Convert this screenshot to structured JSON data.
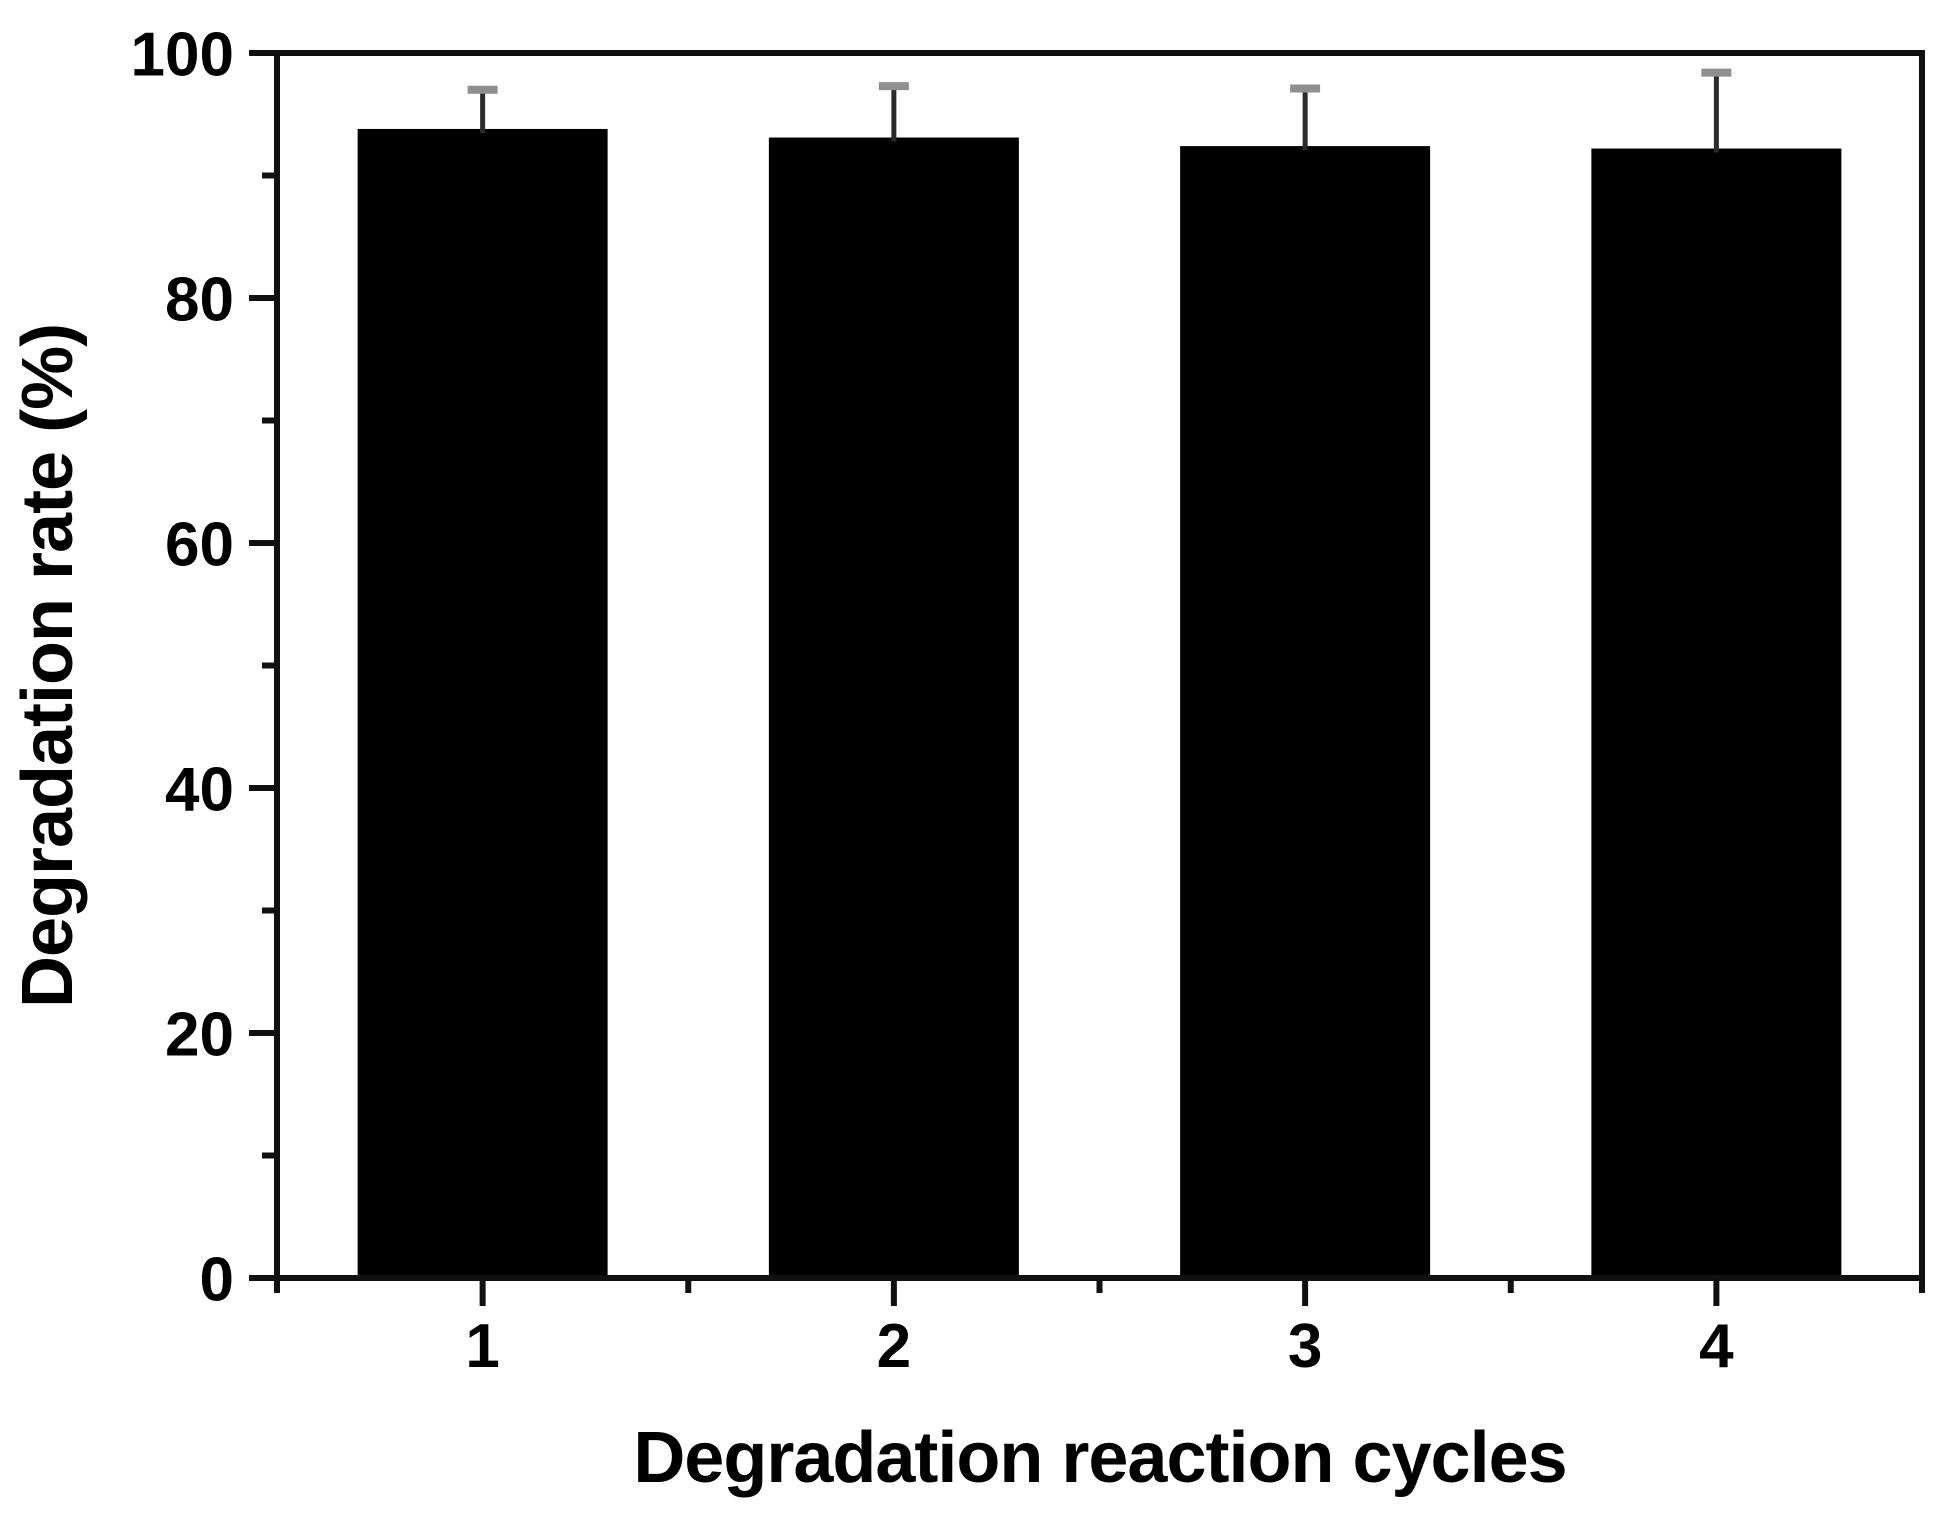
{
  "figure": {
    "background": "#ffffff",
    "description": "Bar chart of photocatalyst reusability: degradation rate over four reaction cycles"
  },
  "chart_data": {
    "type": "bar",
    "title": "",
    "xlabel": "Degradation reaction cycles",
    "ylabel": "Degradation rate (%)",
    "categories": [
      "1",
      "2",
      "3",
      "4"
    ],
    "series": [
      {
        "name": "Degradation rate",
        "values": [
          93.8,
          93.1,
          92.4,
          92.2
        ],
        "error_plus": [
          3.2,
          4.2,
          4.7,
          6.2
        ]
      }
    ],
    "ylim": [
      0,
      100
    ],
    "ytick_major": [
      0,
      20,
      40,
      60,
      80,
      100
    ],
    "ytick_minor": [
      10,
      30,
      50,
      70,
      90
    ],
    "xtick_minor_between_categories": true,
    "grid": false,
    "legend_position": "none",
    "bar_color": "#000000",
    "axis_color": "#111111",
    "tick_label_color": "#000000",
    "error_stem_color": "#2b2b2b",
    "error_cap_color": "#8f8f8f"
  }
}
